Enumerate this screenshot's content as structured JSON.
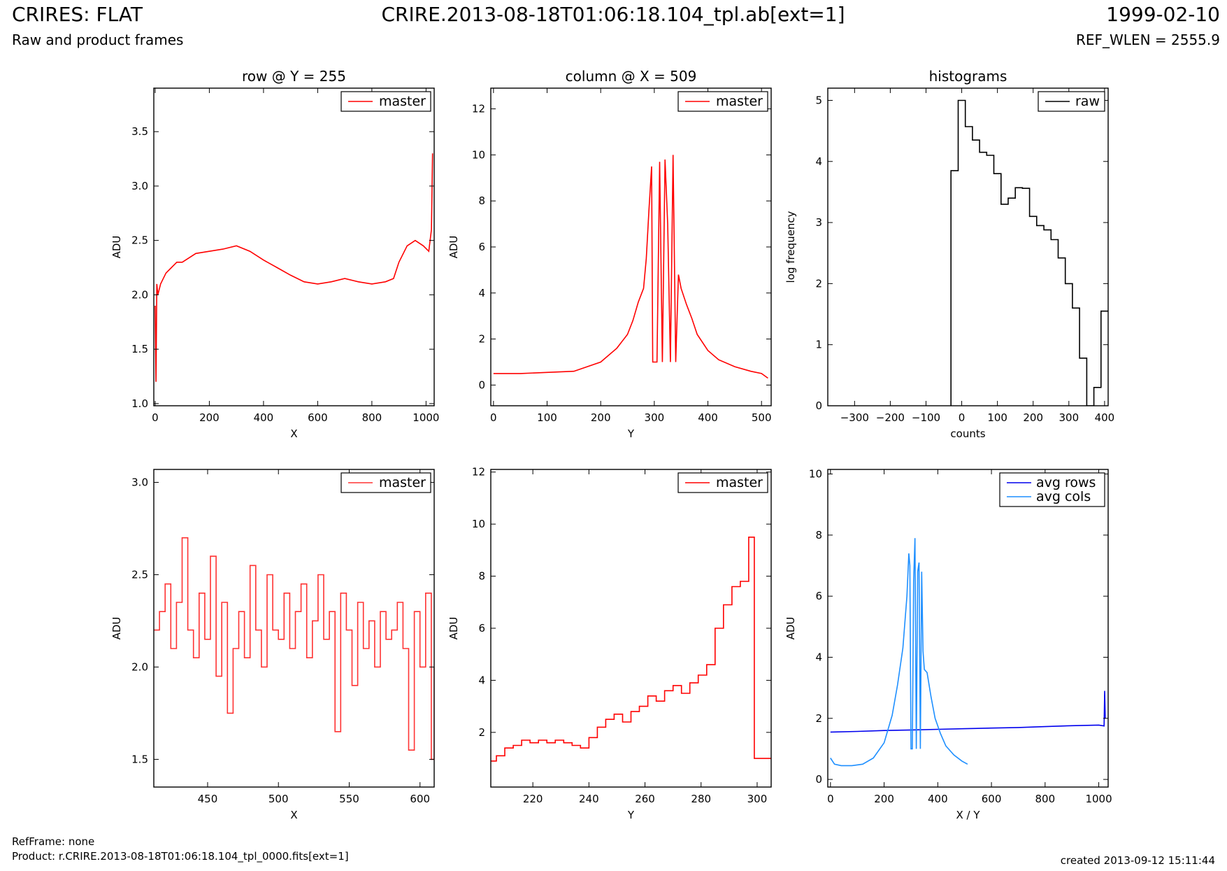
{
  "header": {
    "title_left": "CRIRES: FLAT",
    "subtitle_left": "Raw and product frames",
    "title_center": "CRIRE.2013-08-18T01:06:18.104_tpl.ab[ext=1]",
    "title_right": "1999-02-10",
    "subtitle_right": "REF_WLEN = 2555.9"
  },
  "footer": {
    "ref_frame": "RefFrame: none",
    "product": "Product: r.CRIRE.2013-08-18T01:06:18.104_tpl_0000.fits[ext=1]",
    "created": "created 2013-09-12 15:11:44"
  },
  "chart_data": [
    {
      "type": "line",
      "title": "row @ Y = 255",
      "xlabel": "X",
      "ylabel": "ADU",
      "xlim": [
        -5,
        1030
      ],
      "ylim": [
        0.98,
        3.9
      ],
      "xticks": [
        0,
        200,
        400,
        600,
        800,
        1000
      ],
      "yticks": [
        1.0,
        1.5,
        2.0,
        2.5,
        3.0,
        3.5
      ],
      "ytick_labels": [
        "1.0",
        "1.5",
        "2.0",
        "2.5",
        "3.0",
        "3.5"
      ],
      "legend": "top-right",
      "series": [
        {
          "name": "master",
          "color": "#ff0000",
          "x": [
            0,
            3,
            6,
            10,
            20,
            40,
            60,
            80,
            100,
            150,
            200,
            250,
            300,
            350,
            400,
            450,
            500,
            550,
            600,
            650,
            700,
            750,
            800,
            850,
            880,
            900,
            930,
            960,
            990,
            1010,
            1020,
            1024
          ],
          "y": [
            1.9,
            1.2,
            2.1,
            2.0,
            2.1,
            2.2,
            2.25,
            2.3,
            2.3,
            2.38,
            2.4,
            2.42,
            2.45,
            2.4,
            2.32,
            2.25,
            2.18,
            2.12,
            2.1,
            2.12,
            2.15,
            2.12,
            2.1,
            2.12,
            2.15,
            2.3,
            2.45,
            2.5,
            2.45,
            2.4,
            2.6,
            3.3
          ]
        }
      ]
    },
    {
      "type": "line",
      "title": "column @ X = 509",
      "xlabel": "Y",
      "ylabel": "ADU",
      "xlim": [
        -5,
        518
      ],
      "ylim": [
        -0.9,
        12.9
      ],
      "xticks": [
        0,
        100,
        200,
        300,
        400,
        500
      ],
      "yticks": [
        0,
        2,
        4,
        6,
        8,
        10,
        12
      ],
      "legend": "top-right",
      "series": [
        {
          "name": "master",
          "color": "#ff0000",
          "x": [
            0,
            50,
            100,
            150,
            200,
            230,
            250,
            260,
            270,
            280,
            285,
            290,
            295,
            297,
            300,
            305,
            310,
            315,
            320,
            325,
            330,
            335,
            340,
            345,
            350,
            360,
            370,
            380,
            400,
            420,
            450,
            480,
            500,
            512
          ],
          "y": [
            0.5,
            0.5,
            0.55,
            0.6,
            1.0,
            1.6,
            2.2,
            2.8,
            3.6,
            4.2,
            5.5,
            7.6,
            9.5,
            1.0,
            1.0,
            1.0,
            9.7,
            1.0,
            9.8,
            7.0,
            1.0,
            10.0,
            1.0,
            4.8,
            4.2,
            3.5,
            2.9,
            2.2,
            1.5,
            1.1,
            0.8,
            0.6,
            0.5,
            0.3
          ]
        }
      ]
    },
    {
      "type": "line",
      "title": "histograms",
      "xlabel": "counts",
      "ylabel": "log frequency",
      "xlim": [
        -375,
        410
      ],
      "ylim": [
        0,
        5.2
      ],
      "xticks": [
        -300,
        -200,
        -100,
        0,
        100,
        200,
        300,
        400
      ],
      "xtick_labels": [
        "−300",
        "−200",
        "−100",
        "0",
        "100",
        "200",
        "300",
        "400"
      ],
      "yticks": [
        0,
        1,
        2,
        3,
        4,
        5
      ],
      "legend": "top-right",
      "series": [
        {
          "name": "raw",
          "color": "#000000",
          "step": true,
          "x": [
            -30,
            -30,
            -10,
            10,
            30,
            50,
            70,
            90,
            110,
            130,
            150,
            170,
            190,
            210,
            230,
            250,
            270,
            290,
            310,
            330,
            350,
            370,
            390,
            410
          ],
          "y": [
            0,
            3.85,
            5.0,
            4.57,
            4.35,
            4.15,
            4.1,
            3.8,
            3.3,
            3.4,
            3.57,
            3.56,
            3.1,
            2.95,
            2.88,
            2.72,
            2.42,
            2.0,
            1.6,
            0.78,
            0.0,
            0.3,
            1.55,
            1.55
          ]
        }
      ]
    },
    {
      "type": "line",
      "title": "",
      "xlabel": "X",
      "ylabel": "ADU",
      "xlim": [
        412,
        610
      ],
      "ylim": [
        1.35,
        3.07
      ],
      "xticks": [
        450,
        500,
        550,
        600
      ],
      "yticks": [
        1.5,
        2.0,
        2.5,
        3.0
      ],
      "ytick_labels": [
        "1.5",
        "2.0",
        "2.5",
        "3.0"
      ],
      "legend": "top-right",
      "series": [
        {
          "name": "master",
          "color": "#ff3333",
          "step": true,
          "x": [
            412,
            416,
            420,
            424,
            428,
            432,
            436,
            440,
            444,
            448,
            452,
            456,
            460,
            464,
            468,
            472,
            476,
            480,
            484,
            488,
            492,
            496,
            500,
            504,
            508,
            512,
            516,
            520,
            524,
            528,
            532,
            536,
            540,
            544,
            548,
            552,
            556,
            560,
            564,
            568,
            572,
            576,
            580,
            584,
            588,
            592,
            596,
            600,
            604,
            608,
            610
          ],
          "y": [
            2.2,
            2.3,
            2.45,
            2.1,
            2.35,
            2.7,
            2.2,
            2.05,
            2.4,
            2.15,
            2.6,
            1.95,
            2.35,
            1.75,
            2.1,
            2.3,
            2.05,
            2.55,
            2.2,
            2.0,
            2.5,
            2.2,
            2.15,
            2.4,
            2.1,
            2.3,
            2.45,
            2.05,
            2.25,
            2.5,
            2.15,
            2.3,
            1.65,
            2.4,
            2.2,
            1.9,
            2.35,
            2.1,
            2.25,
            2.0,
            2.3,
            2.15,
            2.2,
            2.35,
            2.1,
            1.55,
            2.3,
            2.0,
            2.4,
            1.5,
            2.0
          ]
        }
      ]
    },
    {
      "type": "line",
      "title": "",
      "xlabel": "Y",
      "ylabel": "ADU",
      "xlim": [
        205,
        305
      ],
      "ylim": [
        -0.1,
        12.1
      ],
      "xticks": [
        220,
        240,
        260,
        280,
        300
      ],
      "yticks": [
        2,
        4,
        6,
        8,
        10,
        12
      ],
      "legend": "top-right",
      "series": [
        {
          "name": "master",
          "color": "#ff0000",
          "step": true,
          "x": [
            205,
            207,
            210,
            213,
            216,
            219,
            222,
            225,
            228,
            231,
            234,
            237,
            240,
            243,
            246,
            249,
            252,
            255,
            258,
            261,
            264,
            267,
            270,
            273,
            276,
            279,
            282,
            285,
            288,
            291,
            294,
            297,
            299,
            305
          ],
          "y": [
            0.9,
            1.1,
            1.4,
            1.5,
            1.7,
            1.6,
            1.7,
            1.6,
            1.7,
            1.6,
            1.5,
            1.4,
            1.8,
            2.2,
            2.5,
            2.7,
            2.4,
            2.8,
            3.0,
            3.4,
            3.2,
            3.6,
            3.8,
            3.5,
            3.9,
            4.2,
            4.6,
            6.0,
            6.9,
            7.6,
            7.8,
            9.5,
            1.0,
            1.0
          ]
        }
      ]
    },
    {
      "type": "line",
      "title": "",
      "xlabel": "X / Y",
      "ylabel": "ADU",
      "xlim": [
        -10,
        1035
      ],
      "ylim": [
        -0.25,
        10.15
      ],
      "xticks": [
        0,
        200,
        400,
        600,
        800,
        1000
      ],
      "yticks": [
        0,
        2,
        4,
        6,
        8,
        10
      ],
      "legend": "top-right",
      "series": [
        {
          "name": "avg rows",
          "color": "#0000ee",
          "x": [
            0,
            100,
            200,
            300,
            400,
            500,
            600,
            700,
            800,
            900,
            1000,
            1020,
            1022,
            1024
          ],
          "y": [
            1.55,
            1.57,
            1.6,
            1.62,
            1.64,
            1.66,
            1.68,
            1.7,
            1.73,
            1.76,
            1.78,
            1.75,
            2.9,
            2.0
          ]
        },
        {
          "name": "avg cols",
          "color": "#1e8fff",
          "x": [
            0,
            15,
            40,
            80,
            120,
            160,
            200,
            230,
            250,
            270,
            285,
            292,
            296,
            300,
            305,
            310,
            315,
            320,
            325,
            330,
            335,
            340,
            345,
            350,
            360,
            375,
            390,
            410,
            430,
            460,
            490,
            511
          ],
          "y": [
            0.7,
            0.5,
            0.45,
            0.45,
            0.5,
            0.7,
            1.2,
            2.1,
            3.1,
            4.3,
            6.0,
            7.4,
            7.0,
            1.0,
            1.0,
            6.5,
            7.9,
            1.0,
            6.8,
            7.1,
            1.0,
            6.8,
            4.2,
            3.6,
            3.5,
            2.7,
            2.0,
            1.5,
            1.1,
            0.8,
            0.6,
            0.5
          ]
        }
      ]
    }
  ]
}
